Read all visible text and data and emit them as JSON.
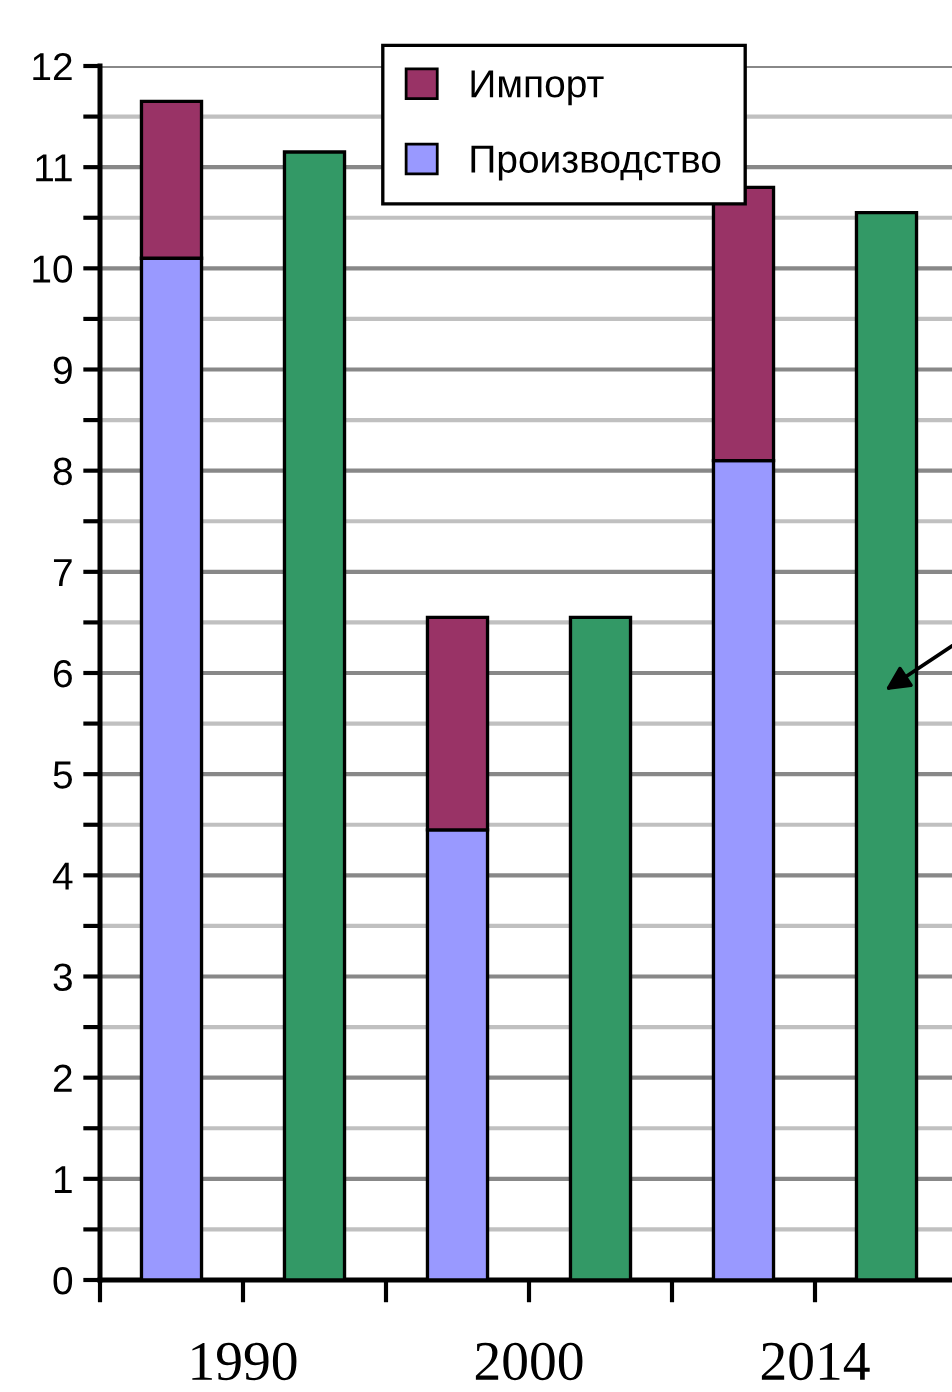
{
  "chart_data": {
    "type": "bar",
    "categories": [
      "1990",
      null,
      "2000",
      null,
      "2014",
      null
    ],
    "stacked": true,
    "series": [
      {
        "name": "Производство",
        "color": "#9999ff",
        "values": [
          10.1,
          null,
          4.45,
          null,
          8.1,
          null
        ]
      },
      {
        "name": "Импорт",
        "color": "#993366",
        "values": [
          1.55,
          null,
          2.1,
          null,
          2.7,
          null
        ]
      },
      {
        "color": "#339966",
        "values": [
          null,
          11.15,
          null,
          6.55,
          null,
          10.55
        ]
      }
    ],
    "ylim": [
      0,
      12
    ],
    "yticks": [
      0,
      {
        "value": 0.5,
        "label": null
      },
      1,
      {
        "value": 1.5,
        "label": null
      },
      2,
      {
        "value": 2.5,
        "label": null
      },
      3,
      {
        "value": 3.5,
        "label": null
      },
      4,
      {
        "value": 4.5,
        "label": null
      },
      5,
      {
        "value": 5.5,
        "label": null
      },
      6,
      {
        "value": 6.5,
        "label": null
      },
      7,
      {
        "value": 7.5,
        "label": null
      },
      8,
      {
        "value": 8.5,
        "label": null
      },
      9,
      {
        "value": 9.5,
        "label": null
      },
      10,
      {
        "value": 10.5,
        "label": null
      },
      11,
      {
        "value": 11.5,
        "label": null
      },
      12
    ],
    "grid": "y",
    "legend": "top"
  }
}
